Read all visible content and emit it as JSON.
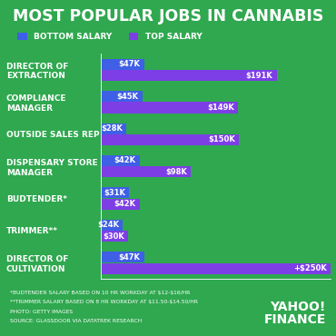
{
  "chart_data": {
    "type": "bar",
    "orientation": "horizontal",
    "title": "MOST POPULAR JOBS IN CANNABIS",
    "categories": [
      "DIRECTOR OF EXTRACTION",
      "COMPLIANCE MANAGER",
      "OUTSIDE SALES REP",
      "DISPENSARY STORE MANAGER",
      "BUDTENDER*",
      "TRIMMER**",
      "DIRECTOR OF CULTIVATION"
    ],
    "series": [
      {
        "name": "BOTTOM SALARY",
        "color": "#3f5fe6",
        "values": [
          47,
          45,
          28,
          42,
          31,
          24,
          47
        ],
        "value_labels": [
          "$47K",
          "$45K",
          "$28K",
          "$42K",
          "$31K",
          "$24K",
          "$47K"
        ]
      },
      {
        "name": "TOP SALARY",
        "color": "#7d3ee6",
        "values": [
          191,
          149,
          150,
          98,
          42,
          30,
          250
        ],
        "value_labels": [
          "$191K",
          "$149K",
          "$150K",
          "$98K",
          "$42K",
          "$30K",
          "+$250K"
        ]
      }
    ],
    "xlim": [
      0,
      250
    ],
    "data_labels": true,
    "tick_labels": "y",
    "legend": "upper left",
    "grid": false,
    "annotations": [
      "*BUDTENDER SALARY BASED ON 10 HR WORKDAY AT $12-$16/HR",
      "**TRIMMER SALARY BASED ON 8 HR WORKDAY AT $11.50-$14.50/HR",
      "PHOTO: GETTY IMAGES",
      "SOURCE: GLASSDOOR VIA DATATREK RESEARCH"
    ],
    "logo": "YAHOO! FINANCE"
  }
}
